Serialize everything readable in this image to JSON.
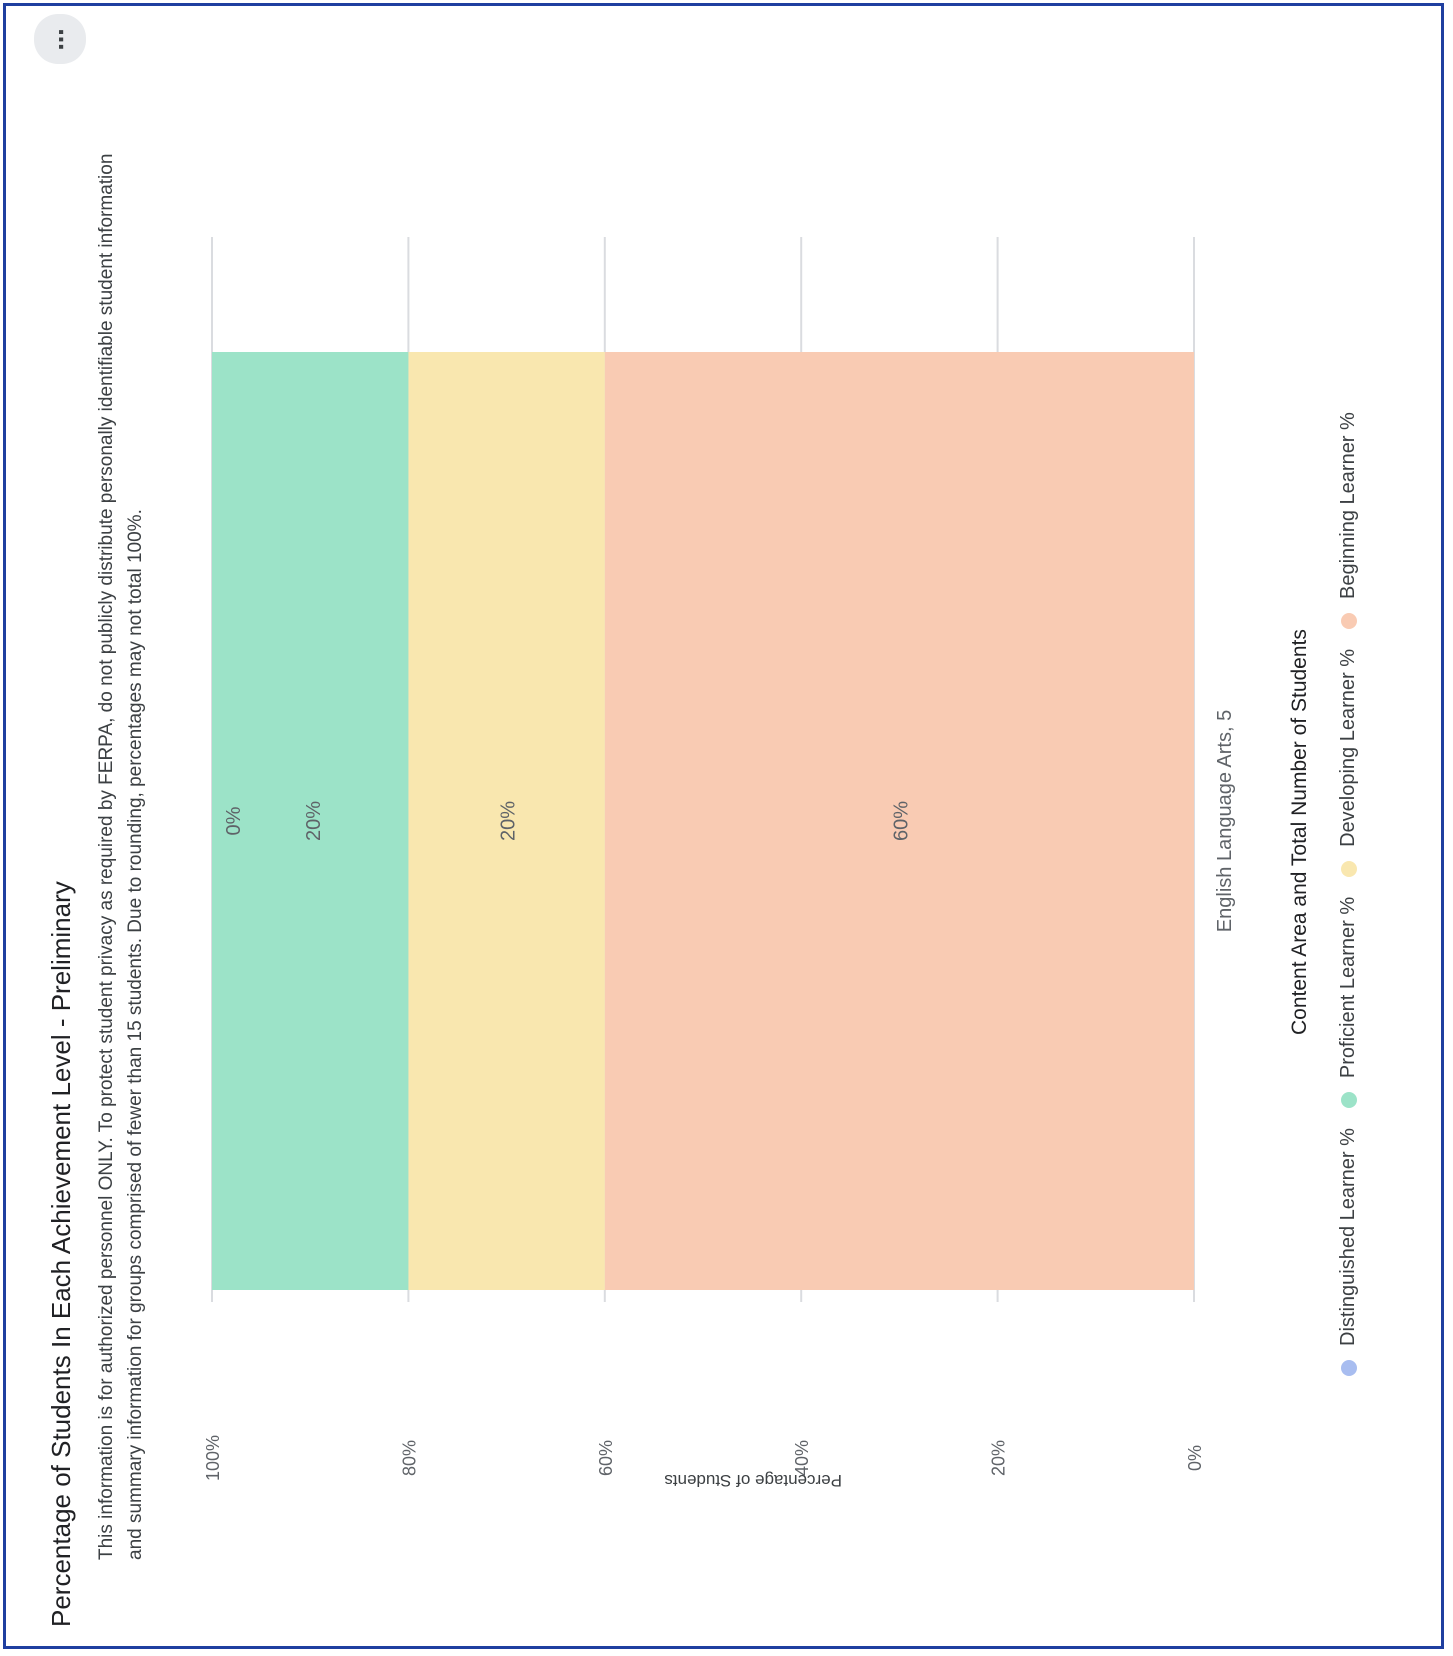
{
  "header": {
    "menu_icon": "more-vertical-icon",
    "title": "Percentage of Students In Each Achievement Level - Preliminary",
    "description_line1": "This information is for authorized personnel ONLY. To protect student privacy as required by FERPA, do not publicly distribute personally identifiable student information",
    "description_line2": "and summary information for groups comprised of fewer than 15 students. Due to rounding, percentages may not total 100%."
  },
  "legend": {
    "items": [
      {
        "label": "Distinguished Learner %",
        "color": "#a8bdf0"
      },
      {
        "label": "Proficient Learner %",
        "color": "#9ce3c8"
      },
      {
        "label": "Developing Learner %",
        "color": "#f9e7af"
      },
      {
        "label": "Beginning Learner %",
        "color": "#f9cbb3"
      }
    ]
  },
  "chart_data": {
    "type": "bar",
    "stacked": true,
    "orientation": "vertical (image rotated 90 degrees)",
    "title": "Percentage of Students In Each Achievement Level - Preliminary",
    "xlabel": "Content Area and Total Number of Students",
    "ylabel": "Percentage of Students",
    "categories": [
      "English Language Arts, 5"
    ],
    "ylim": [
      0,
      100
    ],
    "yticks": [
      "0%",
      "20%",
      "40%",
      "60%",
      "80%",
      "100%"
    ],
    "grid": true,
    "legend_position": "bottom",
    "series": [
      {
        "name": "Beginning Learner %",
        "values": [
          60
        ],
        "color": "#f9cbb3",
        "label": "60%"
      },
      {
        "name": "Developing Learner %",
        "values": [
          20
        ],
        "color": "#f9e7af",
        "label": "20%"
      },
      {
        "name": "Proficient Learner %",
        "values": [
          20
        ],
        "color": "#9ce3c8",
        "label": "20%"
      },
      {
        "name": "Distinguished Learner %",
        "values": [
          0
        ],
        "color": "#a8bdf0",
        "label": "0%"
      }
    ]
  }
}
